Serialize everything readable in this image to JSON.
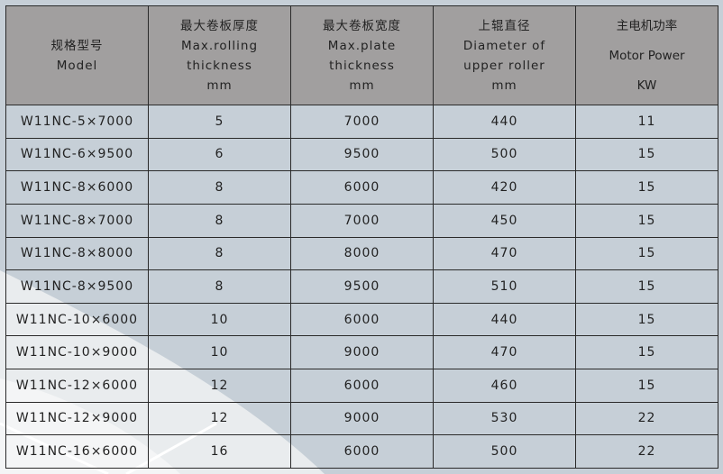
{
  "colors": {
    "header_bg": "#a19f9f",
    "body_bg": "#c6cfd7",
    "border": "#2a2a2a"
  },
  "headers": [
    {
      "zh": "规格型号",
      "en1": "Model",
      "en2": "",
      "unit": ""
    },
    {
      "zh": "最大卷板厚度",
      "en1": "Max.rolling",
      "en2": "thickness",
      "unit": "mm"
    },
    {
      "zh": "最大卷板宽度",
      "en1": "Max.plate",
      "en2": "thickness",
      "unit": "mm"
    },
    {
      "zh": "上辊直径",
      "en1": "Diameter of",
      "en2": "upper roller",
      "unit": "mm"
    },
    {
      "zh": "主电机功率",
      "en1": "Motor Power",
      "en2": "",
      "unit": "KW"
    }
  ],
  "rows": [
    [
      "W11NC-5×7000",
      "5",
      "7000",
      "440",
      "11"
    ],
    [
      "W11NC-6×9500",
      "6",
      "9500",
      "500",
      "15"
    ],
    [
      "W11NC-8×6000",
      "8",
      "6000",
      "420",
      "15"
    ],
    [
      "W11NC-8×7000",
      "8",
      "7000",
      "450",
      "15"
    ],
    [
      "W11NC-8×8000",
      "8",
      "8000",
      "470",
      "15"
    ],
    [
      "W11NC-8×9500",
      "8",
      "9500",
      "510",
      "15"
    ],
    [
      "W11NC-10×6000",
      "10",
      "6000",
      "440",
      "15"
    ],
    [
      "W11NC-10×9000",
      "10",
      "9000",
      "470",
      "15"
    ],
    [
      "W11NC-12×6000",
      "12",
      "6000",
      "460",
      "15"
    ],
    [
      "W11NC-12×9000",
      "12",
      "9000",
      "530",
      "22"
    ],
    [
      "W11NC-16×6000",
      "16",
      "6000",
      "500",
      "22"
    ]
  ]
}
